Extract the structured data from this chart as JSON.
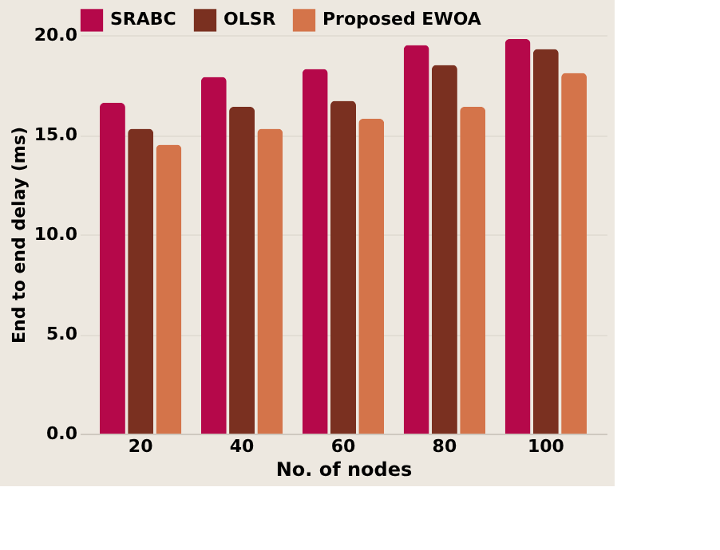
{
  "chart_data": {
    "type": "bar",
    "xlabel": "No. of nodes",
    "ylabel": "End to end delay (ms)",
    "categories": [
      "20",
      "40",
      "60",
      "80",
      "100"
    ],
    "series": [
      {
        "name": "SRABC",
        "color": "#b5084a",
        "values": [
          16.6,
          17.9,
          18.3,
          19.5,
          19.8
        ]
      },
      {
        "name": "OLSR",
        "color": "#7a3020",
        "values": [
          15.3,
          16.4,
          16.7,
          18.5,
          19.3
        ]
      },
      {
        "name": "Proposed EWOA",
        "color": "#d4744a",
        "values": [
          14.5,
          15.3,
          15.8,
          16.4,
          18.1
        ]
      }
    ],
    "ylim": [
      0,
      20
    ],
    "yticks": [
      {
        "value": 0,
        "label": "0.0"
      },
      {
        "value": 5,
        "label": "5.0"
      },
      {
        "value": 10,
        "label": "10.0"
      },
      {
        "value": 15,
        "label": "15.0"
      },
      {
        "value": 20,
        "label": "20.0"
      }
    ],
    "grid": "y",
    "legend": "top"
  }
}
